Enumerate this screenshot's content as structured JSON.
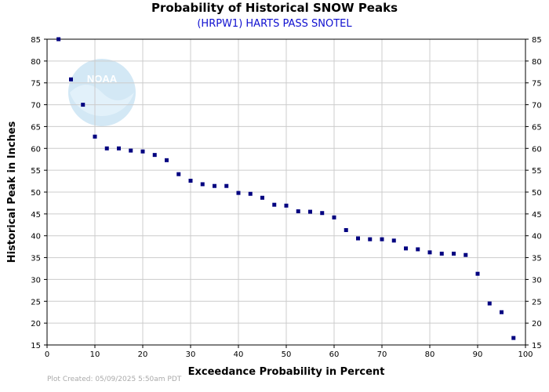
{
  "chart_data": {
    "type": "scatter",
    "title": "Probability of Historical SNOW Peaks",
    "subtitle": "(HRPW1) HARTS PASS SNOTEL",
    "xlabel": "Exceedance Probability in Percent",
    "ylabel": "Historical Peak in Inches",
    "xlim": [
      0,
      100
    ],
    "ylim": [
      15,
      85
    ],
    "x_ticks": [
      0,
      10,
      20,
      30,
      40,
      50,
      60,
      70,
      80,
      90,
      100
    ],
    "y_ticks": [
      15,
      20,
      25,
      30,
      35,
      40,
      45,
      50,
      55,
      60,
      65,
      70,
      75,
      80,
      85
    ],
    "grid": true,
    "marker_color": "#000080",
    "points": [
      {
        "x": 2.4,
        "y": 85.0
      },
      {
        "x": 5.0,
        "y": 75.8
      },
      {
        "x": 7.5,
        "y": 70.0
      },
      {
        "x": 10.0,
        "y": 62.7
      },
      {
        "x": 12.5,
        "y": 60.0
      },
      {
        "x": 15.0,
        "y": 60.0
      },
      {
        "x": 17.5,
        "y": 59.5
      },
      {
        "x": 20.0,
        "y": 59.3
      },
      {
        "x": 22.5,
        "y": 58.5
      },
      {
        "x": 25.0,
        "y": 57.3
      },
      {
        "x": 27.5,
        "y": 54.1
      },
      {
        "x": 30.0,
        "y": 52.6
      },
      {
        "x": 32.5,
        "y": 51.8
      },
      {
        "x": 35.0,
        "y": 51.4
      },
      {
        "x": 37.5,
        "y": 51.4
      },
      {
        "x": 40.0,
        "y": 49.8
      },
      {
        "x": 42.5,
        "y": 49.6
      },
      {
        "x": 45.0,
        "y": 48.7
      },
      {
        "x": 47.5,
        "y": 47.1
      },
      {
        "x": 50.0,
        "y": 46.9
      },
      {
        "x": 52.5,
        "y": 45.6
      },
      {
        "x": 55.0,
        "y": 45.5
      },
      {
        "x": 57.5,
        "y": 45.2
      },
      {
        "x": 60.0,
        "y": 44.2
      },
      {
        "x": 62.5,
        "y": 41.3
      },
      {
        "x": 65.0,
        "y": 39.4
      },
      {
        "x": 67.5,
        "y": 39.2
      },
      {
        "x": 70.0,
        "y": 39.2
      },
      {
        "x": 72.5,
        "y": 38.9
      },
      {
        "x": 75.0,
        "y": 37.1
      },
      {
        "x": 77.5,
        "y": 36.9
      },
      {
        "x": 80.0,
        "y": 36.2
      },
      {
        "x": 82.5,
        "y": 35.9
      },
      {
        "x": 85.0,
        "y": 35.9
      },
      {
        "x": 87.5,
        "y": 35.6
      },
      {
        "x": 90.0,
        "y": 31.3
      },
      {
        "x": 92.5,
        "y": 24.5
      },
      {
        "x": 95.0,
        "y": 22.5
      },
      {
        "x": 97.5,
        "y": 16.6
      }
    ]
  },
  "footer": {
    "credit": "Plot Created: 05/09/2025 5:50am PDT"
  },
  "watermark": {
    "text": "NOAA"
  }
}
